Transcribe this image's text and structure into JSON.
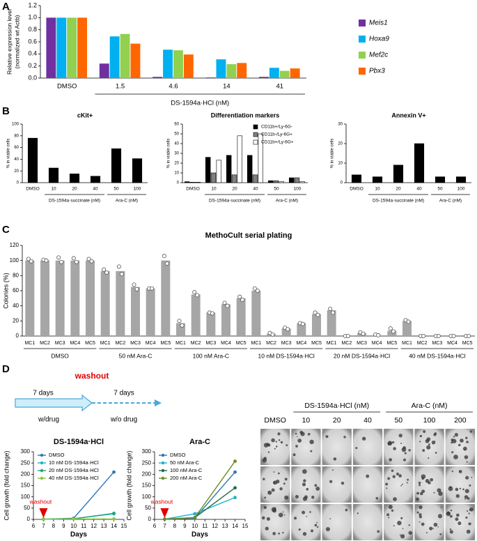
{
  "panels": [
    "A",
    "B",
    "C",
    "D"
  ],
  "chart_data": [
    {
      "type": "bar",
      "ylabel": [
        "Relative expression level",
        "(normalized wt Actb)"
      ],
      "groups": [
        {
          "categories": [
            "DMSO"
          ]
        },
        {
          "label": "DS-1594a·HCl (nM)",
          "categories": [
            "1.5",
            "4.6",
            "14",
            "41"
          ]
        }
      ],
      "series": [
        {
          "name": "Meis1",
          "color": "#7030a0",
          "values": [
            1.0,
            0.24,
            0.02,
            0.01,
            0.02
          ]
        },
        {
          "name": "Hoxa9",
          "color": "#00b0f0",
          "values": [
            1.0,
            0.69,
            0.47,
            0.31,
            0.17
          ]
        },
        {
          "name": "Mef2c",
          "color": "#92d050",
          "values": [
            1.0,
            0.73,
            0.46,
            0.23,
            0.12
          ]
        },
        {
          "name": "Pbx3",
          "color": "#ff6600",
          "values": [
            1.0,
            0.57,
            0.39,
            0.25,
            0.16
          ]
        }
      ],
      "ylim": [
        0,
        1.2
      ],
      "yticks": [
        {
          "value": 0,
          "label": "0.0"
        },
        {
          "value": 0.2,
          "label": "0.2"
        },
        {
          "value": 0.4,
          "label": "0.4"
        },
        {
          "value": 0.6,
          "label": "0.6"
        },
        {
          "value": 0.8,
          "label": "0.8"
        },
        {
          "value": 1,
          "label": "1.0"
        },
        {
          "value": 1.2,
          "label": "1.2"
        }
      ],
      "legend": "right",
      "legend_style": "italic"
    },
    {
      "type": "bar",
      "title": "cKit+",
      "ylabel": [
        "% in viable cells"
      ],
      "groups": [
        {
          "categories": [
            "DMSO"
          ]
        },
        {
          "label": "DS-1594a·succinate (nM)",
          "categories": [
            "10",
            "20",
            "40"
          ]
        },
        {
          "label": "Ara-C (nM)",
          "categories": [
            "50",
            "100"
          ]
        }
      ],
      "values": [
        76,
        25,
        15,
        11,
        58,
        41
      ],
      "color": "#000000",
      "ylim": [
        0,
        100
      ],
      "yticks": [
        0,
        20,
        40,
        60,
        80,
        100
      ]
    },
    {
      "type": "bar",
      "title": "Differentiation markers",
      "ylabel": [
        "% in viable cells"
      ],
      "groups": [
        {
          "categories": [
            "DMSO"
          ]
        },
        {
          "label": "DS-1594a·succinate (nM)",
          "categories": [
            "10",
            "20",
            "40"
          ]
        },
        {
          "label": "Ara-C (nM)",
          "categories": [
            "50",
            "100"
          ]
        }
      ],
      "series": [
        {
          "name": "CD11b+/Ly-6G-",
          "color": "#000000",
          "values": [
            1,
            26,
            28,
            28,
            2,
            5
          ]
        },
        {
          "name": "CD11b-/Ly-6G+",
          "color": "#808080",
          "values": [
            0.5,
            10,
            8,
            8,
            2,
            5
          ]
        },
        {
          "name": "CD11b+/Ly-6G+",
          "color": "#ffffff",
          "values": [
            0.5,
            23,
            48,
            50,
            1,
            1
          ]
        }
      ],
      "ylim": [
        0,
        60
      ],
      "yticks": [
        0,
        10,
        20,
        30,
        40,
        50,
        60
      ],
      "legend": "upper right"
    },
    {
      "type": "bar",
      "title": "Annexin V+",
      "ylabel": [
        "% in viable cells"
      ],
      "groups": [
        {
          "categories": [
            "DMSO"
          ]
        },
        {
          "label": "DS-1594a·succinate (nM)",
          "categories": [
            "10",
            "20",
            "40"
          ]
        },
        {
          "label": "Ara-C (nM)",
          "categories": [
            "50",
            "100"
          ]
        }
      ],
      "values": [
        4,
        3,
        9,
        20,
        3,
        3
      ],
      "color": "#000000",
      "ylim": [
        0,
        30
      ],
      "yticks": [
        0,
        10,
        20,
        30
      ]
    },
    {
      "type": "bar",
      "title": "MethoCult serial plating",
      "ylabel": [
        "Colonies (%)"
      ],
      "groups": [
        {
          "label": "DMSO",
          "categories": [
            "MC1",
            "MC2",
            "MC3",
            "MC4",
            "MC5"
          ]
        },
        {
          "label": "50 nM Ara-C",
          "categories": [
            "MC1",
            "MC2",
            "MC3",
            "MC4",
            "MC5"
          ]
        },
        {
          "label": "100 nM Ara-C",
          "categories": [
            "MC1",
            "MC2",
            "MC3",
            "MC4",
            "MC5"
          ]
        },
        {
          "label": "10 nM DS-1594a·HCl",
          "categories": [
            "MC1",
            "MC2",
            "MC3",
            "MC4",
            "MC5"
          ]
        },
        {
          "label": "20 nM DS-1594a·HCl",
          "categories": [
            "MC1",
            "MC2",
            "MC3",
            "MC4",
            "MC5"
          ]
        },
        {
          "label": "40 nM DS-1594a·HCl",
          "categories": [
            "MC1",
            "MC2",
            "MC3",
            "MC4",
            "MC5"
          ]
        }
      ],
      "values": [
        100,
        100,
        100,
        100,
        100,
        86,
        86,
        65,
        63,
        100,
        17,
        55,
        31,
        42,
        50,
        60,
        3,
        10,
        17,
        29,
        34,
        0,
        4,
        1,
        7,
        20,
        0,
        0,
        0,
        0
      ],
      "points": [
        [
          102,
          99
        ],
        [
          101,
          100
        ],
        [
          104,
          98
        ],
        [
          103,
          98
        ],
        [
          102,
          99
        ],
        [
          88,
          84
        ],
        [
          92,
          82
        ],
        [
          68,
          62
        ],
        [
          63,
          63
        ],
        [
          106,
          96
        ],
        [
          20,
          14
        ],
        [
          58,
          54
        ],
        [
          31,
          30
        ],
        [
          44,
          40
        ],
        [
          52,
          48
        ],
        [
          63,
          60
        ],
        [
          4,
          2
        ],
        [
          11,
          9
        ],
        [
          17,
          16
        ],
        [
          31,
          28
        ],
        [
          36,
          31
        ],
        [
          0,
          0
        ],
        [
          5,
          3
        ],
        [
          2,
          1
        ],
        [
          10,
          6
        ],
        [
          21,
          19
        ],
        [
          0,
          0
        ],
        [
          0,
          0
        ],
        [
          0,
          0
        ],
        [
          0,
          0
        ]
      ],
      "color": "#a6a6a6",
      "ylim": [
        0,
        120
      ],
      "yticks": [
        0,
        20,
        40,
        60,
        80,
        100,
        120
      ]
    },
    {
      "type": "line",
      "title": "DS-1594a·HCl",
      "ylabel": [
        "Cell growth (fold change)"
      ],
      "xlabel": "Days",
      "x": [
        7,
        10,
        14
      ],
      "series": [
        {
          "name": "DMSO",
          "color": "#2e75b6",
          "values": [
            1,
            5,
            210
          ]
        },
        {
          "name": "10 nM DS-1594a·HCl",
          "color": "#1fb1c4",
          "values": [
            1,
            3,
            25
          ]
        },
        {
          "name": "20 nM DS-1594a·HCl",
          "color": "#1fa67a",
          "values": [
            1,
            3,
            27
          ]
        },
        {
          "name": "40 nM DS-1594a·HCl",
          "color": "#8cc63f",
          "values": [
            1,
            2,
            2
          ]
        }
      ],
      "xlim": [
        6,
        15
      ],
      "xticks": [
        6,
        7,
        8,
        9,
        10,
        11,
        12,
        13,
        14,
        15
      ],
      "ylim": [
        0,
        300
      ],
      "yticks": [
        0,
        50,
        100,
        150,
        200,
        250,
        300
      ],
      "annotation": {
        "text": "washout",
        "x": 7
      },
      "legend": "upper left"
    },
    {
      "type": "line",
      "title": "Ara-C",
      "ylabel": [
        "Cell growth (fold change)"
      ],
      "xlabel": "Days",
      "x": [
        7,
        10,
        14
      ],
      "series": [
        {
          "name": "DMSO",
          "color": "#2e75b6",
          "values": [
            1,
            5,
            210
          ]
        },
        {
          "name": "50 nM Ara-C",
          "color": "#1fb1c4",
          "values": [
            1,
            25,
            97
          ]
        },
        {
          "name": "100 nM Ara-C",
          "color": "#1e6b4c",
          "values": [
            1,
            8,
            140
          ]
        },
        {
          "name": "200 nM Ara-C",
          "color": "#6b8e23",
          "values": [
            1,
            8,
            258
          ]
        }
      ],
      "xlim": [
        6,
        15
      ],
      "xticks": [
        6,
        7,
        8,
        9,
        10,
        11,
        12,
        13,
        14,
        15
      ],
      "ylim": [
        0,
        300
      ],
      "yticks": [
        0,
        50,
        100,
        150,
        200,
        250,
        300
      ],
      "annotation": {
        "text": "washout",
        "x": 7
      },
      "legend": "upper left"
    }
  ],
  "timeline": {
    "washout": "washout",
    "before": {
      "duration": "7 days",
      "label": "w/drug"
    },
    "after": {
      "duration": "7 days",
      "label": "w/o drug"
    }
  },
  "image_panel": {
    "columns": [
      {
        "items": [
          "DMSO"
        ]
      },
      {
        "label": "DS-1594a·HCl (nM)",
        "items": [
          "10",
          "20",
          "40"
        ]
      },
      {
        "label": "Ara-C (nM)",
        "items": [
          "50",
          "100",
          "200"
        ]
      }
    ]
  }
}
